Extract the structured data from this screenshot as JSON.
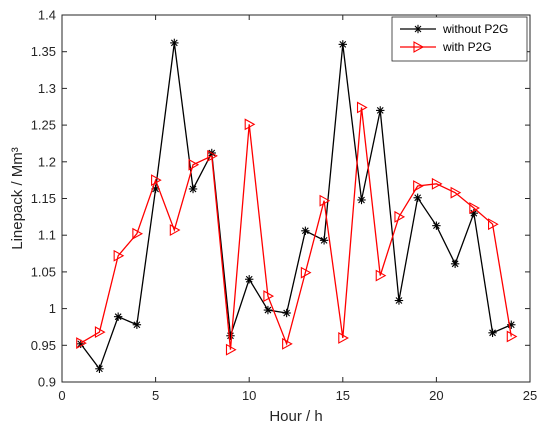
{
  "chart_data": {
    "type": "line",
    "xlabel": "Hour / h",
    "ylabel": "Linepack / Mm³",
    "xlim": [
      0,
      25
    ],
    "ylim": [
      0.9,
      1.4
    ],
    "xticks": [
      0,
      5,
      10,
      15,
      20,
      25
    ],
    "yticks": [
      0.9,
      0.95,
      1,
      1.05,
      1.1,
      1.15,
      1.2,
      1.25,
      1.3,
      1.35,
      1.4
    ],
    "x_tick_labels": [
      "0",
      "5",
      "10",
      "15",
      "20",
      "25"
    ],
    "y_tick_labels": [
      "0.9",
      "0.95",
      "1",
      "1.05",
      "1.1",
      "1.15",
      "1.2",
      "1.25",
      "1.3",
      "1.35",
      "1.4"
    ],
    "grid": false,
    "legend_position": "top-right",
    "x": [
      1,
      2,
      3,
      4,
      5,
      6,
      7,
      8,
      9,
      10,
      11,
      12,
      13,
      14,
      15,
      16,
      17,
      18,
      19,
      20,
      21,
      22,
      23,
      24
    ],
    "series": [
      {
        "name": "without P2G",
        "color": "#000000",
        "marker": "asterisk",
        "values": [
          0.952,
          0.918,
          0.989,
          0.978,
          1.163,
          1.362,
          1.163,
          1.212,
          0.963,
          1.04,
          0.998,
          0.994,
          1.106,
          1.093,
          1.36,
          1.148,
          1.27,
          1.011,
          1.151,
          1.113,
          1.061,
          1.13,
          0.967,
          0.978
        ]
      },
      {
        "name": "with P2G",
        "color": "#ff0000",
        "marker": "triangle-right",
        "values": [
          0.953,
          0.968,
          1.072,
          1.102,
          1.175,
          1.107,
          1.196,
          1.208,
          0.944,
          1.251,
          1.017,
          0.952,
          1.049,
          1.147,
          0.96,
          1.274,
          1.045,
          1.125,
          1.167,
          1.17,
          1.158,
          1.137,
          1.115,
          0.962
        ]
      }
    ]
  }
}
